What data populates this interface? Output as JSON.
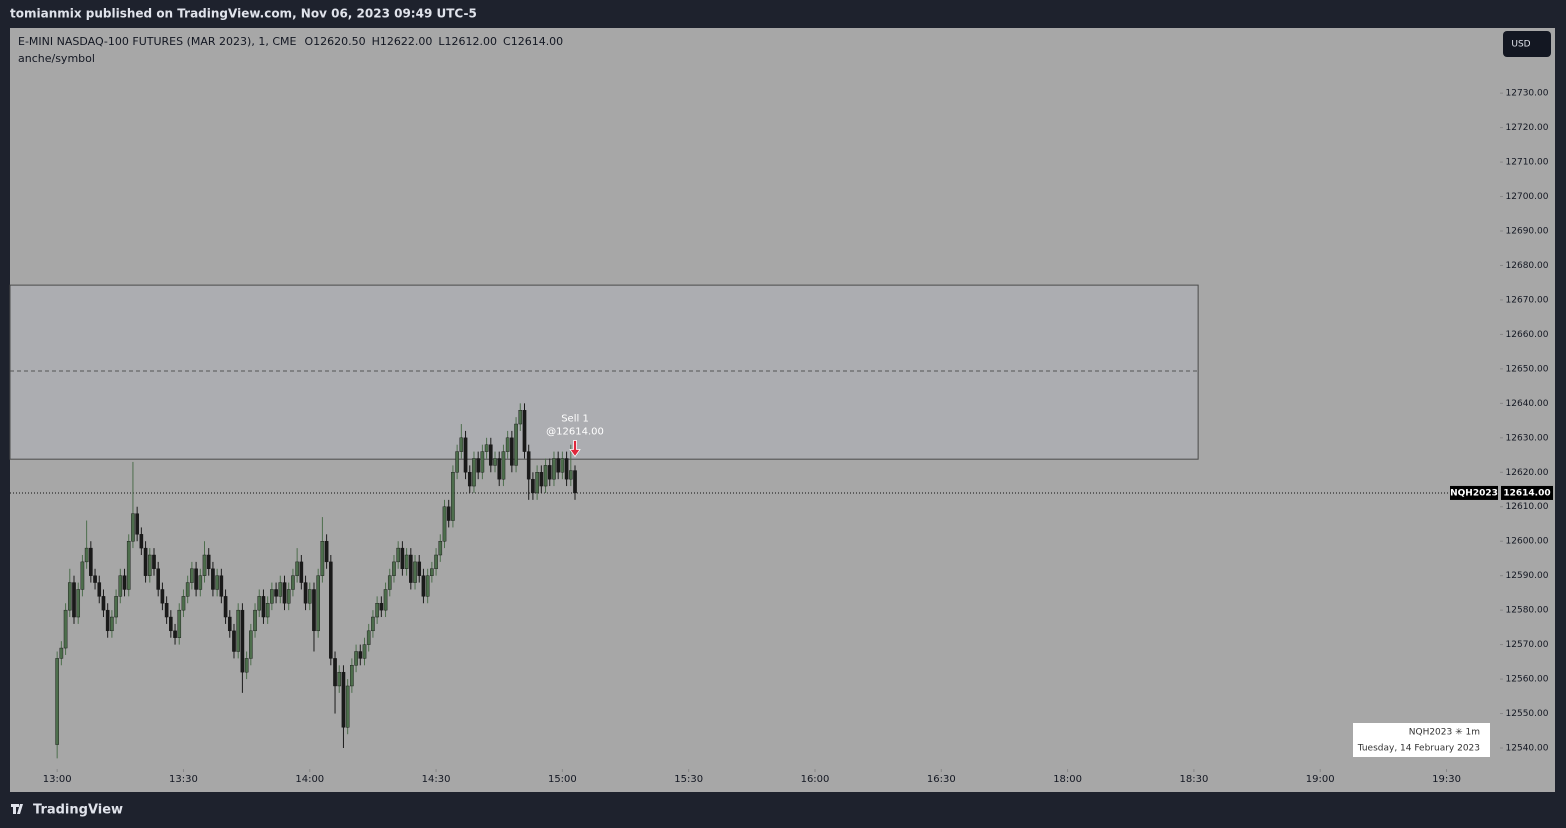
{
  "header": {
    "text": "tomianmix published on TradingView.com, Nov 06, 2023 09:49 UTC-5"
  },
  "footer": {
    "brand": "TradingView"
  },
  "toolbar": {
    "currency": "USD"
  },
  "chart_data": {
    "type": "candlestick",
    "legend": {
      "title": "E-MINI NASDAQ-100 FUTURES (MAR 2023), 1, CME",
      "open": "O12620.50",
      "high": "H12622.00",
      "low": "L12612.00",
      "close": "C12614.00",
      "subtitle": "anche/symbol"
    },
    "up_color": "#4d6e4c",
    "down_color": "#1a1a1a",
    "xlim": [
      -11.2,
      342.7
    ],
    "xticks": [
      {
        "value": 0,
        "label": "13:00"
      },
      {
        "value": 30,
        "label": "13:30"
      },
      {
        "value": 60,
        "label": "14:00"
      },
      {
        "value": 90,
        "label": "14:30"
      },
      {
        "value": 120,
        "label": "15:00"
      },
      {
        "value": 150,
        "label": "15:30"
      },
      {
        "value": 180,
        "label": "16:00"
      },
      {
        "value": 210,
        "label": "16:30"
      },
      {
        "value": 240,
        "label": "18:00"
      },
      {
        "value": 270,
        "label": "18:30"
      },
      {
        "value": 300,
        "label": "19:00"
      },
      {
        "value": 330,
        "label": "19:30"
      }
    ],
    "ylim": [
      12534.2,
      12748.9
    ],
    "yticks": [
      {
        "value": 12540,
        "label": "12540.00"
      },
      {
        "value": 12550,
        "label": "12550.00"
      },
      {
        "value": 12560,
        "label": "12560.00"
      },
      {
        "value": 12570,
        "label": "12570.00"
      },
      {
        "value": 12580,
        "label": "12580.00"
      },
      {
        "value": 12590,
        "label": "12590.00"
      },
      {
        "value": 12600,
        "label": "12600.00"
      },
      {
        "value": 12610,
        "label": "12610.00"
      },
      {
        "value": 12620,
        "label": "12620.00"
      },
      {
        "value": 12630,
        "label": "12630.00"
      },
      {
        "value": 12640,
        "label": "12640.00"
      },
      {
        "value": 12650,
        "label": "12650.00"
      },
      {
        "value": 12660,
        "label": "12660.00"
      },
      {
        "value": 12670,
        "label": "12670.00"
      },
      {
        "value": 12680,
        "label": "12680.00"
      },
      {
        "value": 12690,
        "label": "12690.00"
      },
      {
        "value": 12700,
        "label": "12700.00"
      },
      {
        "value": 12710,
        "label": "12710.00"
      },
      {
        "value": 12720,
        "label": "12720.00"
      },
      {
        "value": 12730,
        "label": "12730.00"
      }
    ],
    "zone": {
      "ylim": [
        12623.8,
        12674.3
      ],
      "mid": 12649.4,
      "x_end": 271
    },
    "last_price": {
      "value": 12614,
      "label": "12614.00",
      "symbol": "NQH2023"
    },
    "order": {
      "label": "Sell 1",
      "price_label": "@12614.00",
      "index": 123,
      "value": 12624
    },
    "watermark": {
      "symbol": "NQH2023 ✳ 1m",
      "date": "Tuesday, 14 February 2023"
    },
    "ohlc": [
      [
        12541,
        12568,
        12537,
        12566
      ],
      [
        12566,
        12571,
        12564,
        12569
      ],
      [
        12569,
        12582,
        12567,
        12580
      ],
      [
        12580,
        12592,
        12578,
        12588
      ],
      [
        12588,
        12590,
        12576,
        12578
      ],
      [
        12578,
        12588,
        12576,
        12586
      ],
      [
        12586,
        12596,
        12584,
        12594
      ],
      [
        12594,
        12606,
        12592,
        12598
      ],
      [
        12598,
        12600,
        12588,
        12590
      ],
      [
        12590,
        12592,
        12586,
        12588
      ],
      [
        12588,
        12590,
        12582,
        12584
      ],
      [
        12584,
        12586,
        12578,
        12580
      ],
      [
        12580,
        12582,
        12572,
        12574
      ],
      [
        12574,
        12580,
        12572,
        12578
      ],
      [
        12578,
        12586,
        12576,
        12584
      ],
      [
        12584,
        12592,
        12582,
        12590
      ],
      [
        12590,
        12592,
        12584,
        12586
      ],
      [
        12586,
        12602,
        12584,
        12600
      ],
      [
        12600,
        12623,
        12598,
        12608
      ],
      [
        12608,
        12610,
        12600,
        12602
      ],
      [
        12602,
        12604,
        12596,
        12598
      ],
      [
        12598,
        12600,
        12588,
        12590
      ],
      [
        12590,
        12598,
        12588,
        12596
      ],
      [
        12596,
        12598,
        12590,
        12592
      ],
      [
        12592,
        12594,
        12584,
        12586
      ],
      [
        12586,
        12588,
        12580,
        12582
      ],
      [
        12582,
        12584,
        12576,
        12578
      ],
      [
        12578,
        12580,
        12572,
        12574
      ],
      [
        12574,
        12576,
        12570,
        12572
      ],
      [
        12572,
        12582,
        12570,
        12580
      ],
      [
        12580,
        12586,
        12578,
        12584
      ],
      [
        12584,
        12590,
        12582,
        12588
      ],
      [
        12588,
        12594,
        12586,
        12592
      ],
      [
        12592,
        12594,
        12584,
        12586
      ],
      [
        12586,
        12592,
        12584,
        12590
      ],
      [
        12590,
        12600,
        12588,
        12596
      ],
      [
        12596,
        12598,
        12590,
        12592
      ],
      [
        12592,
        12594,
        12584,
        12586
      ],
      [
        12586,
        12592,
        12584,
        12590
      ],
      [
        12590,
        12592,
        12582,
        12584
      ],
      [
        12584,
        12586,
        12576,
        12578
      ],
      [
        12578,
        12580,
        12572,
        12574
      ],
      [
        12574,
        12576,
        12566,
        12568
      ],
      [
        12568,
        12582,
        12566,
        12580
      ],
      [
        12580,
        12582,
        12556,
        12562
      ],
      [
        12562,
        12568,
        12560,
        12566
      ],
      [
        12566,
        12576,
        12564,
        12574
      ],
      [
        12574,
        12582,
        12572,
        12580
      ],
      [
        12580,
        12586,
        12578,
        12584
      ],
      [
        12584,
        12586,
        12576,
        12578
      ],
      [
        12578,
        12584,
        12576,
        12582
      ],
      [
        12582,
        12588,
        12580,
        12586
      ],
      [
        12586,
        12588,
        12582,
        12584
      ],
      [
        12584,
        12590,
        12582,
        12588
      ],
      [
        12588,
        12590,
        12580,
        12582
      ],
      [
        12582,
        12588,
        12580,
        12586
      ],
      [
        12586,
        12592,
        12584,
        12590
      ],
      [
        12590,
        12598,
        12588,
        12594
      ],
      [
        12594,
        12596,
        12586,
        12588
      ],
      [
        12588,
        12590,
        12580,
        12582
      ],
      [
        12582,
        12588,
        12580,
        12586
      ],
      [
        12586,
        12588,
        12568,
        12574
      ],
      [
        12574,
        12592,
        12572,
        12590
      ],
      [
        12590,
        12607,
        12588,
        12600
      ],
      [
        12600,
        12602,
        12592,
        12594
      ],
      [
        12594,
        12596,
        12564,
        12566
      ],
      [
        12566,
        12568,
        12550,
        12558
      ],
      [
        12558,
        12564,
        12556,
        12562
      ],
      [
        12562,
        12564,
        12540,
        12546
      ],
      [
        12546,
        12560,
        12544,
        12558
      ],
      [
        12558,
        12566,
        12556,
        12564
      ],
      [
        12564,
        12570,
        12562,
        12568
      ],
      [
        12568,
        12570,
        12564,
        12566
      ],
      [
        12566,
        12572,
        12564,
        12570
      ],
      [
        12570,
        12576,
        12568,
        12574
      ],
      [
        12574,
        12580,
        12572,
        12578
      ],
      [
        12578,
        12584,
        12576,
        12582
      ],
      [
        12582,
        12584,
        12578,
        12580
      ],
      [
        12580,
        12588,
        12578,
        12586
      ],
      [
        12586,
        12592,
        12584,
        12590
      ],
      [
        12590,
        12596,
        12588,
        12594
      ],
      [
        12594,
        12600,
        12592,
        12598
      ],
      [
        12598,
        12600,
        12590,
        12592
      ],
      [
        12592,
        12598,
        12590,
        12596
      ],
      [
        12596,
        12598,
        12586,
        12588
      ],
      [
        12588,
        12596,
        12586,
        12594
      ],
      [
        12594,
        12596,
        12588,
        12590
      ],
      [
        12590,
        12592,
        12582,
        12584
      ],
      [
        12584,
        12592,
        12582,
        12590
      ],
      [
        12590,
        12594,
        12588,
        12592
      ],
      [
        12592,
        12598,
        12590,
        12596
      ],
      [
        12596,
        12602,
        12594,
        12600
      ],
      [
        12600,
        12612,
        12598,
        12610
      ],
      [
        12610,
        12612,
        12604,
        12606
      ],
      [
        12606,
        12622,
        12604,
        12620
      ],
      [
        12620,
        12628,
        12618,
        12626
      ],
      [
        12626,
        12634,
        12624,
        12630
      ],
      [
        12630,
        12632,
        12618,
        12620
      ],
      [
        12620,
        12622,
        12614,
        12616
      ],
      [
        12616,
        12626,
        12614,
        12624
      ],
      [
        12624,
        12626,
        12618,
        12620
      ],
      [
        12620,
        12628,
        12618,
        12626
      ],
      [
        12626,
        12630,
        12624,
        12628
      ],
      [
        12628,
        12630,
        12620,
        12622
      ],
      [
        12622,
        12626,
        12620,
        12624
      ],
      [
        12624,
        12626,
        12616,
        12618
      ],
      [
        12618,
        12628,
        12616,
        12626
      ],
      [
        12626,
        12632,
        12624,
        12630
      ],
      [
        12630,
        12632,
        12620,
        12622
      ],
      [
        12622,
        12636,
        12620,
        12634
      ],
      [
        12634,
        12640,
        12632,
        12638
      ],
      [
        12638,
        12640,
        12624,
        12626
      ],
      [
        12626,
        12628,
        12612,
        12618
      ],
      [
        12618,
        12620,
        12612,
        12614
      ],
      [
        12614,
        12622,
        12612,
        12620
      ],
      [
        12620,
        12622,
        12614,
        12616
      ],
      [
        12616,
        12624,
        12614,
        12622
      ],
      [
        12622,
        12624,
        12616,
        12618
      ],
      [
        12618,
        12626,
        12616,
        12624
      ],
      [
        12624,
        12626,
        12618,
        12620
      ],
      [
        12620,
        12626,
        12618,
        12624
      ],
      [
        12624,
        12626,
        12616,
        12618
      ],
      [
        12618,
        12628,
        12616,
        12620.5
      ],
      [
        12620.5,
        12622,
        12612,
        12614
      ]
    ]
  }
}
